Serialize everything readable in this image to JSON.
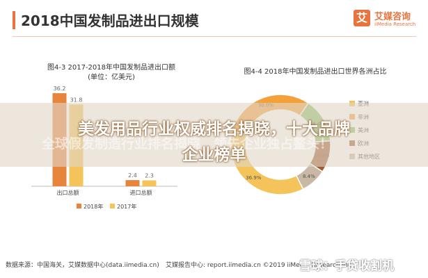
{
  "header": {
    "title": "2018中国发制品进出口规模",
    "logo_mark": "艾",
    "logo_name": "艾媒咨询",
    "logo_sub": "iiMedia Research"
  },
  "chart_data": [
    {
      "type": "bar",
      "title": "图4-3 2017-2018年中国发制品进出口额",
      "subtitle": "(单位：亿美元)",
      "categories": [
        "出口总额",
        "进口总额"
      ],
      "series": [
        {
          "name": "2018年",
          "values": [
            36.2,
            2.4
          ],
          "color": "#e8853d"
        },
        {
          "name": "2017年",
          "values": [
            31.8,
            2.3
          ],
          "color": "#f4c35a"
        }
      ],
      "ylim": [
        0,
        40
      ],
      "legend": "bottom"
    },
    {
      "type": "pie",
      "title": "图4-4 2018年中国发制品进出口世界各洲占比",
      "slices": [
        {
          "label": "亚洲",
          "value": 36.9,
          "color": "#f4c35a"
        },
        {
          "label": "非洲",
          "value": 30.0,
          "color": "#f4a13a"
        },
        {
          "label": "美洲",
          "value": 14.4,
          "color": "#8fbf6a"
        },
        {
          "label": "欧洲",
          "value": 10.3,
          "color": "#a35a32"
        },
        {
          "label": "其他地区",
          "value": 8.4,
          "color": "#c9b8a3"
        }
      ],
      "legend": "right"
    }
  ],
  "overlay": {
    "headline_1": "美发用品行业权威排名揭晓，十大品牌",
    "headline_2": "企业榜单",
    "subline": "全球假发制造行业排名揭晓，领先企业独占鳌头！"
  },
  "footer": {
    "source": "数据来源：中国海关，艾媒数据中心(data.iimedia.cn)",
    "report": "艾媒报告中心: report.iimedia.cn ©2019 iiMedia Research Inc",
    "watermark": "雪球：手贷收割机"
  }
}
